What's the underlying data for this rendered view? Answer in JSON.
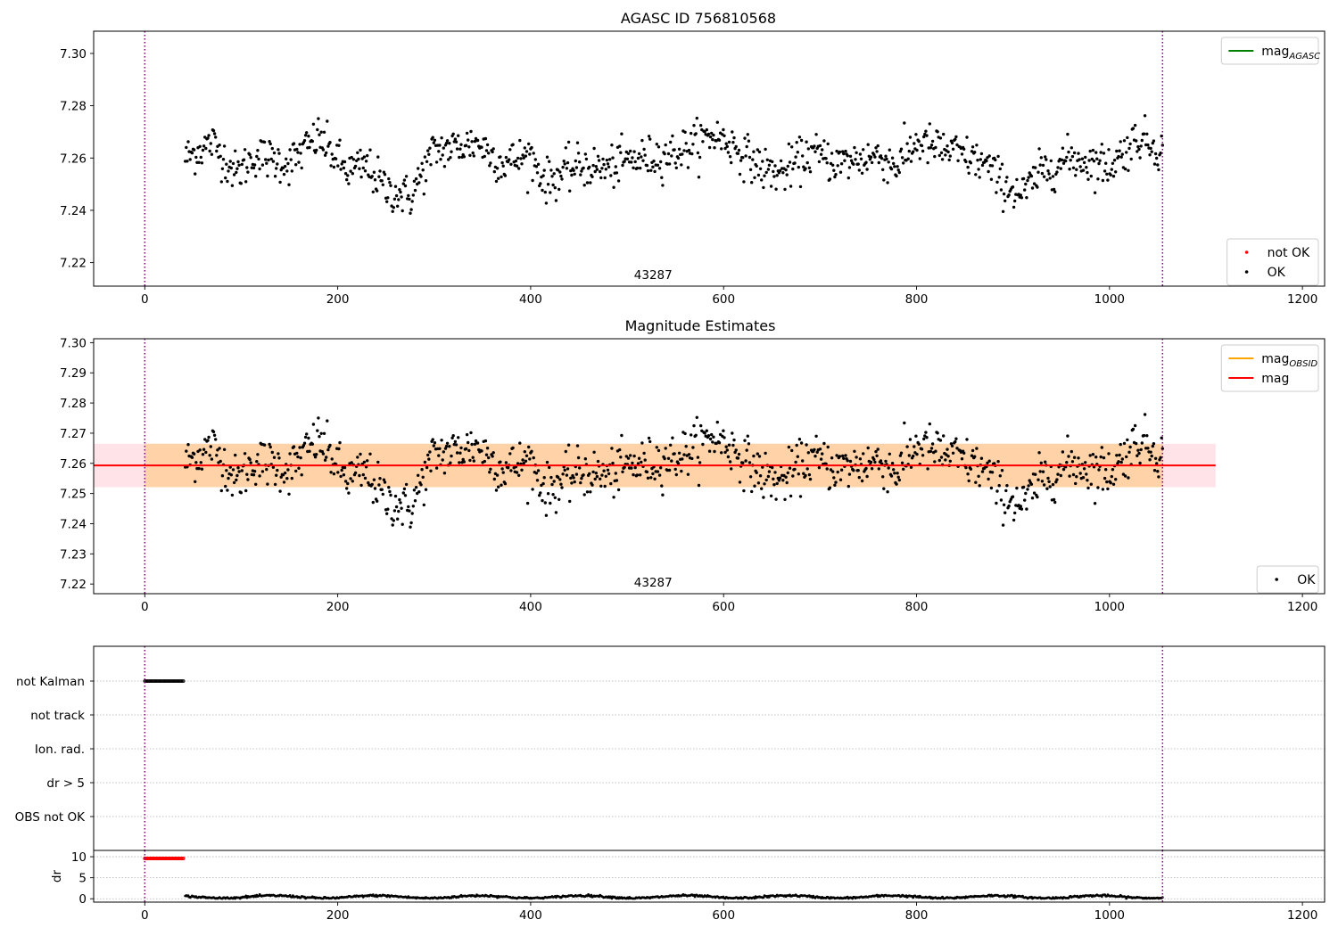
{
  "chart_data": [
    {
      "type": "scatter",
      "title": "AGASC ID 756810568",
      "xlabel": "",
      "ylabel": "",
      "xlim": [
        -53,
        1223
      ],
      "ylim": [
        7.211,
        7.3085
      ],
      "x_ticks": [
        0,
        200,
        400,
        600,
        800,
        1000,
        1200
      ],
      "y_ticks": [
        7.22,
        7.24,
        7.26,
        7.28,
        7.3
      ],
      "y_tick_labels": [
        "7.22",
        "7.24",
        "7.26",
        "7.28",
        "7.30"
      ],
      "vlines": [
        0,
        1055
      ],
      "obsid_label": {
        "text": "43287",
        "x": 527
      },
      "legend_upper": {
        "placement": "top-right",
        "entries": [
          {
            "label": "mag",
            "subscript": "AGASC",
            "color": "#008000",
            "kind": "line"
          }
        ]
      },
      "legend_lower": {
        "placement": "bottom-right",
        "entries": [
          {
            "label": "not OK",
            "color": "#ff0000",
            "kind": "point"
          },
          {
            "label": "OK",
            "color": "#000000",
            "kind": "point"
          }
        ]
      },
      "series": [
        {
          "name": "OK",
          "color": "#000000",
          "x_range": [
            42,
            1055
          ],
          "n_points": 1000,
          "trend": [
            [
              42,
              7.26
            ],
            [
              70,
              7.266
            ],
            [
              95,
              7.254
            ],
            [
              115,
              7.261
            ],
            [
              150,
              7.258
            ],
            [
              180,
              7.268
            ],
            [
              210,
              7.255
            ],
            [
              230,
              7.257
            ],
            [
              250,
              7.248
            ],
            [
              275,
              7.245
            ],
            [
              300,
              7.263
            ],
            [
              320,
              7.264
            ],
            [
              345,
              7.266
            ],
            [
              370,
              7.258
            ],
            [
              400,
              7.261
            ],
            [
              415,
              7.251
            ],
            [
              450,
              7.257
            ],
            [
              480,
              7.256
            ],
            [
              500,
              7.259
            ],
            [
              520,
              7.26
            ],
            [
              550,
              7.262
            ],
            [
              590,
              7.269
            ],
            [
              605,
              7.266
            ],
            [
              640,
              7.256
            ],
            [
              660,
              7.254
            ],
            [
              690,
              7.262
            ],
            [
              720,
              7.258
            ],
            [
              760,
              7.261
            ],
            [
              780,
              7.257
            ],
            [
              800,
              7.266
            ],
            [
              840,
              7.262
            ],
            [
              870,
              7.258
            ],
            [
              890,
              7.25
            ],
            [
              910,
              7.246
            ],
            [
              930,
              7.255
            ],
            [
              960,
              7.26
            ],
            [
              1000,
              7.257
            ],
            [
              1030,
              7.268
            ],
            [
              1055,
              7.263
            ]
          ],
          "scatter_sd": 0.004
        }
      ]
    },
    {
      "type": "scatter",
      "title": "Magnitude Estimates",
      "xlabel": "",
      "ylabel": "",
      "xlim": [
        -53,
        1223
      ],
      "ylim": [
        7.2168,
        7.3013
      ],
      "x_ticks": [
        0,
        200,
        400,
        600,
        800,
        1000,
        1200
      ],
      "y_ticks": [
        7.22,
        7.23,
        7.24,
        7.25,
        7.26,
        7.27,
        7.28,
        7.29,
        7.3
      ],
      "y_tick_labels": [
        "7.22",
        "7.23",
        "7.24",
        "7.25",
        "7.26",
        "7.27",
        "7.28",
        "7.29",
        "7.30"
      ],
      "vlines": [
        0,
        1055
      ],
      "obsid_label": {
        "text": "43287",
        "x": 527
      },
      "mag_line": {
        "value": 7.2593,
        "x_range": [
          -53,
          1110
        ],
        "color": "#ff0000"
      },
      "band_outer": {
        "low": 7.2521,
        "high": 7.2665,
        "x_range": [
          -53,
          1110
        ],
        "color": "#ffc0cb"
      },
      "band_inner": {
        "low": 7.2521,
        "high": 7.2665,
        "x_range": [
          0,
          1055
        ],
        "color": "#ffa500"
      },
      "legend_upper": {
        "placement": "top-right",
        "entries": [
          {
            "label": "mag",
            "subscript": "OBSID",
            "color": "#ffa500",
            "kind": "line"
          },
          {
            "label": "mag",
            "subscript": "",
            "color": "#ff0000",
            "kind": "line"
          }
        ]
      },
      "legend_lower": {
        "placement": "bottom-right",
        "entries": [
          {
            "label": "OK",
            "color": "#000000",
            "kind": "point"
          }
        ]
      }
    },
    {
      "type": "scatter",
      "title": "",
      "xlabel": "",
      "ylabel": "",
      "xlim": [
        -53,
        1223
      ],
      "categories": [
        "not Kalman",
        "not track",
        "Ion. rad.",
        "dr > 5",
        "OBS not OK"
      ],
      "vlines": [
        0,
        1055
      ],
      "flag_series": [
        {
          "category": "not Kalman",
          "x_range": [
            0,
            40
          ],
          "n_points": 40,
          "color": "#000000"
        }
      ]
    },
    {
      "type": "scatter",
      "title": "",
      "xlabel": "",
      "ylabel": "dr",
      "xlim": [
        -53,
        1223
      ],
      "ylim": [
        -0.8,
        11.5
      ],
      "x_ticks": [
        0,
        200,
        400,
        600,
        800,
        1000,
        1200
      ],
      "y_ticks": [
        0,
        5,
        10
      ],
      "y_tick_labels": [
        "0",
        "5",
        "10"
      ],
      "vlines": [
        0,
        1055
      ],
      "series": [
        {
          "name": "not OK",
          "color": "#ff0000",
          "x_range": [
            0,
            40
          ],
          "y": 9.6,
          "n_points": 40
        },
        {
          "name": "OK",
          "color": "#000000",
          "x_range": [
            42,
            1055
          ],
          "y_mean": 0.45,
          "n_points": 1000
        }
      ]
    }
  ]
}
